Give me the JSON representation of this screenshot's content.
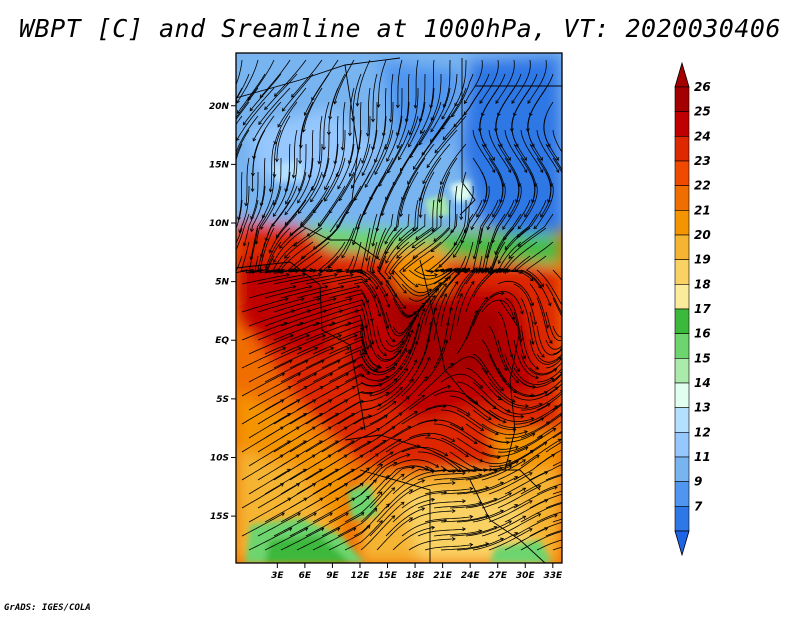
{
  "title": "WBPT [C] and Sreamline at 1000hPa, VT: 2020030406",
  "credit": "GrADS: IGES/COLA",
  "map": {
    "lat_range": [
      -19,
      24.5
    ],
    "lon_range": [
      -1.5,
      34
    ],
    "lat_ticks": [
      {
        "value": 20,
        "label": "20N"
      },
      {
        "value": 15,
        "label": "15N"
      },
      {
        "value": 10,
        "label": "10N"
      },
      {
        "value": 5,
        "label": "5N"
      },
      {
        "value": 0,
        "label": "EQ"
      },
      {
        "value": -5,
        "label": "5S"
      },
      {
        "value": -10,
        "label": "10S"
      },
      {
        "value": -15,
        "label": "15S"
      }
    ],
    "lon_ticks": [
      {
        "value": 3,
        "label": "3E"
      },
      {
        "value": 6,
        "label": "6E"
      },
      {
        "value": 9,
        "label": "9E"
      },
      {
        "value": 12,
        "label": "12E"
      },
      {
        "value": 15,
        "label": "15E"
      },
      {
        "value": 18,
        "label": "18E"
      },
      {
        "value": 21,
        "label": "21E"
      },
      {
        "value": 24,
        "label": "24E"
      },
      {
        "value": 27,
        "label": "27E"
      },
      {
        "value": 30,
        "label": "30E"
      },
      {
        "value": 33,
        "label": "33E"
      }
    ]
  },
  "colorbar": {
    "levels": [
      {
        "label": "26",
        "color": "#a50000"
      },
      {
        "label": "25",
        "color": "#c00000"
      },
      {
        "label": "24",
        "color": "#dd2800"
      },
      {
        "label": "23",
        "color": "#f04a00"
      },
      {
        "label": "22",
        "color": "#f06e00"
      },
      {
        "label": "21",
        "color": "#f49400"
      },
      {
        "label": "20",
        "color": "#f5b432"
      },
      {
        "label": "19",
        "color": "#fad264"
      },
      {
        "label": "18",
        "color": "#fbec9c"
      },
      {
        "label": "17",
        "color": "#3cb83c"
      },
      {
        "label": "16",
        "color": "#6ed46e"
      },
      {
        "label": "15",
        "color": "#aaeaaa"
      },
      {
        "label": "14",
        "color": "#e1fff0"
      },
      {
        "label": "13",
        "color": "#b4e0ff"
      },
      {
        "label": "12",
        "color": "#96c8ff"
      },
      {
        "label": "11",
        "color": "#78b4f0"
      },
      {
        "label": "9",
        "color": "#5096f0"
      },
      {
        "label": "7",
        "color": "#2d78e6"
      }
    ],
    "top_arrow_color": "#a50000",
    "bottom_arrow_color": "#1e64e6"
  }
}
